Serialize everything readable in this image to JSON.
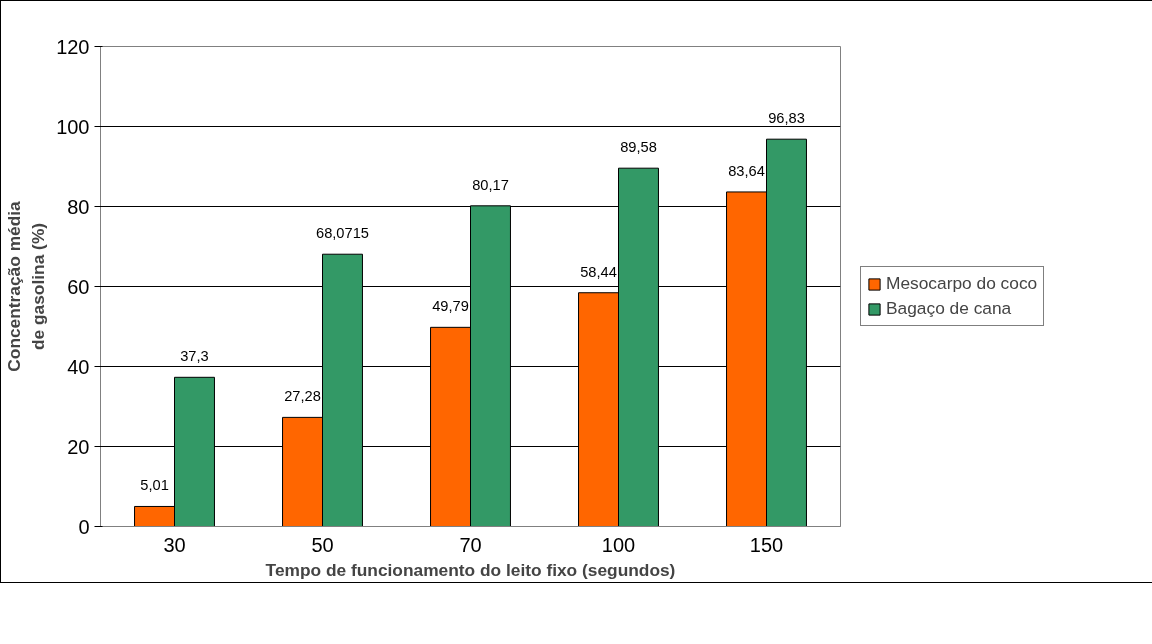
{
  "chart_data": {
    "type": "bar",
    "xlabel": "Tempo de funcionamento do leito fixo (segundos)",
    "ylabel": "Concentração média de gasolina (%)",
    "categories": [
      "30",
      "50",
      "70",
      "100",
      "150"
    ],
    "series": [
      {
        "name": "Mesocarpo do coco",
        "color": "#ff6600",
        "values": [
          5.01,
          27.28,
          49.79,
          58.44,
          83.64
        ],
        "value_labels": [
          "5,01",
          "27,28",
          "49,79",
          "58,44",
          "83,64"
        ]
      },
      {
        "name": "Bagaço de cana",
        "color": "#339966",
        "values": [
          37.3,
          68.0715,
          80.17,
          89.58,
          96.83
        ],
        "value_labels": [
          "37,3",
          "68,0715",
          "80,17",
          "89,58",
          "96,83"
        ]
      }
    ],
    "ylim": [
      0,
      120
    ],
    "yticks": [
      0,
      20,
      40,
      60,
      80,
      100,
      120
    ],
    "grid": "y",
    "legend": "right"
  }
}
